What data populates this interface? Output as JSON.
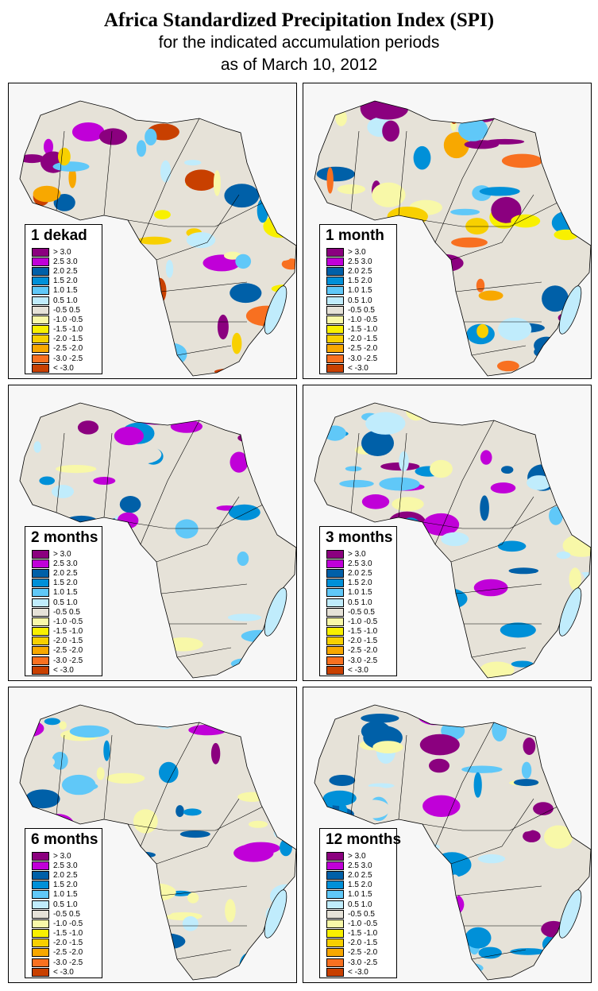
{
  "title": "Africa Standardized Precipitation Index (SPI)",
  "subtitle": "for the indicated accumulation periods",
  "date_line": "as of March 10, 2012",
  "legend": [
    {
      "label": "> 3.0",
      "color": "#8b007f"
    },
    {
      "label": "2.5  3.0",
      "color": "#c000d8"
    },
    {
      "label": "2.0  2.5",
      "color": "#0060a8"
    },
    {
      "label": "1.5  2.0",
      "color": "#0090d8"
    },
    {
      "label": "1.0  1.5",
      "color": "#60c8f8"
    },
    {
      "label": "0.5  1.0",
      "color": "#c0ecfc"
    },
    {
      "label": "-0.5  0.5",
      "color": "#e6e2d8"
    },
    {
      "label": "-1.0 -0.5",
      "color": "#f8f8a8"
    },
    {
      "label": "-1.5 -1.0",
      "color": "#f8f000"
    },
    {
      "label": "-2.0 -1.5",
      "color": "#f8d000"
    },
    {
      "label": "-2.5 -2.0",
      "color": "#f8a800"
    },
    {
      "label": "-3.0 -2.5",
      "color": "#f87020"
    },
    {
      "label": "< -3.0",
      "color": "#c84000"
    }
  ],
  "panels": [
    {
      "label": "1 dekad"
    },
    {
      "label": "1 month"
    },
    {
      "label": "2 months"
    },
    {
      "label": "3 months"
    },
    {
      "label": "6 months"
    },
    {
      "label": "12 months"
    }
  ]
}
